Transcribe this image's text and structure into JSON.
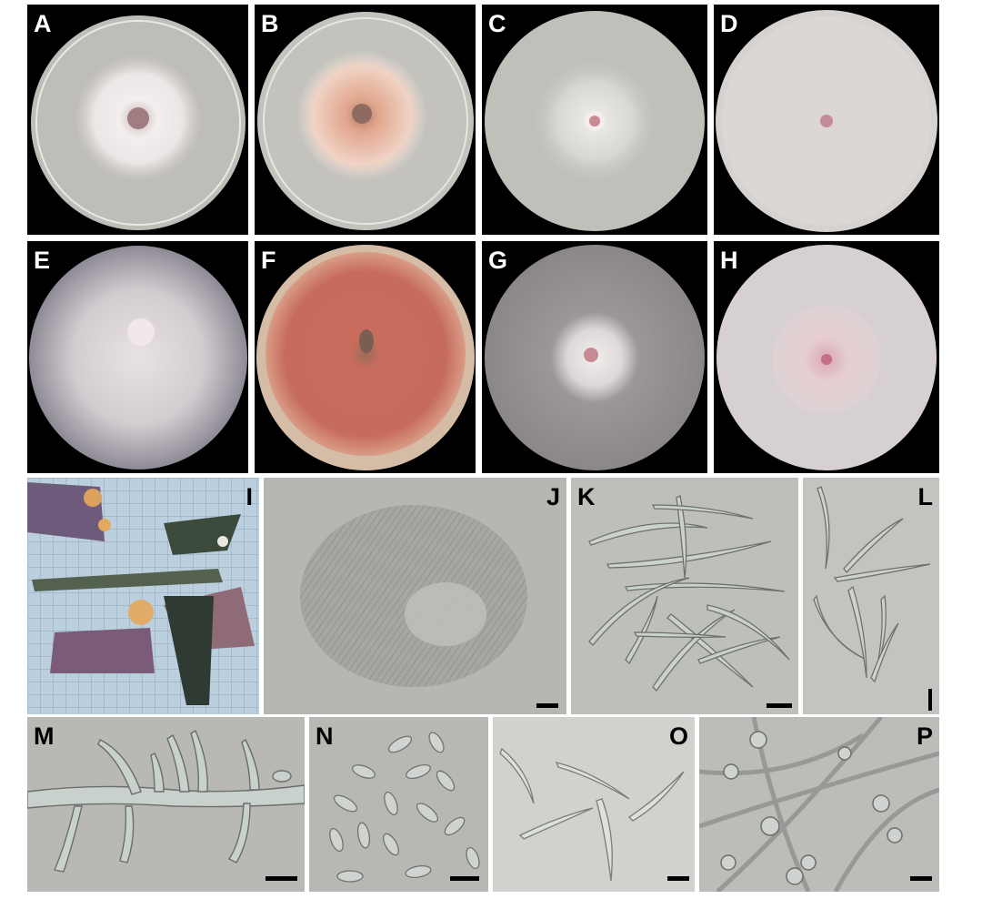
{
  "figure": {
    "panels": [
      {
        "id": "A",
        "label": "A"
      },
      {
        "id": "B",
        "label": "B"
      },
      {
        "id": "C",
        "label": "C"
      },
      {
        "id": "D",
        "label": "D"
      },
      {
        "id": "E",
        "label": "E"
      },
      {
        "id": "F",
        "label": "F"
      },
      {
        "id": "G",
        "label": "G"
      },
      {
        "id": "H",
        "label": "H"
      },
      {
        "id": "I",
        "label": "I"
      },
      {
        "id": "J",
        "label": "J"
      },
      {
        "id": "K",
        "label": "K"
      },
      {
        "id": "L",
        "label": "L"
      },
      {
        "id": "M",
        "label": "M"
      },
      {
        "id": "N",
        "label": "N"
      },
      {
        "id": "O",
        "label": "O"
      },
      {
        "id": "P",
        "label": "P"
      }
    ]
  },
  "colors": {
    "background": "#000000",
    "agar": "#bdbcb6",
    "colony_white": "#f1ecec",
    "colony_salmon": "#e0a58a",
    "colony_red": "#c4685a",
    "micro_gray": "#b9b9b5"
  }
}
